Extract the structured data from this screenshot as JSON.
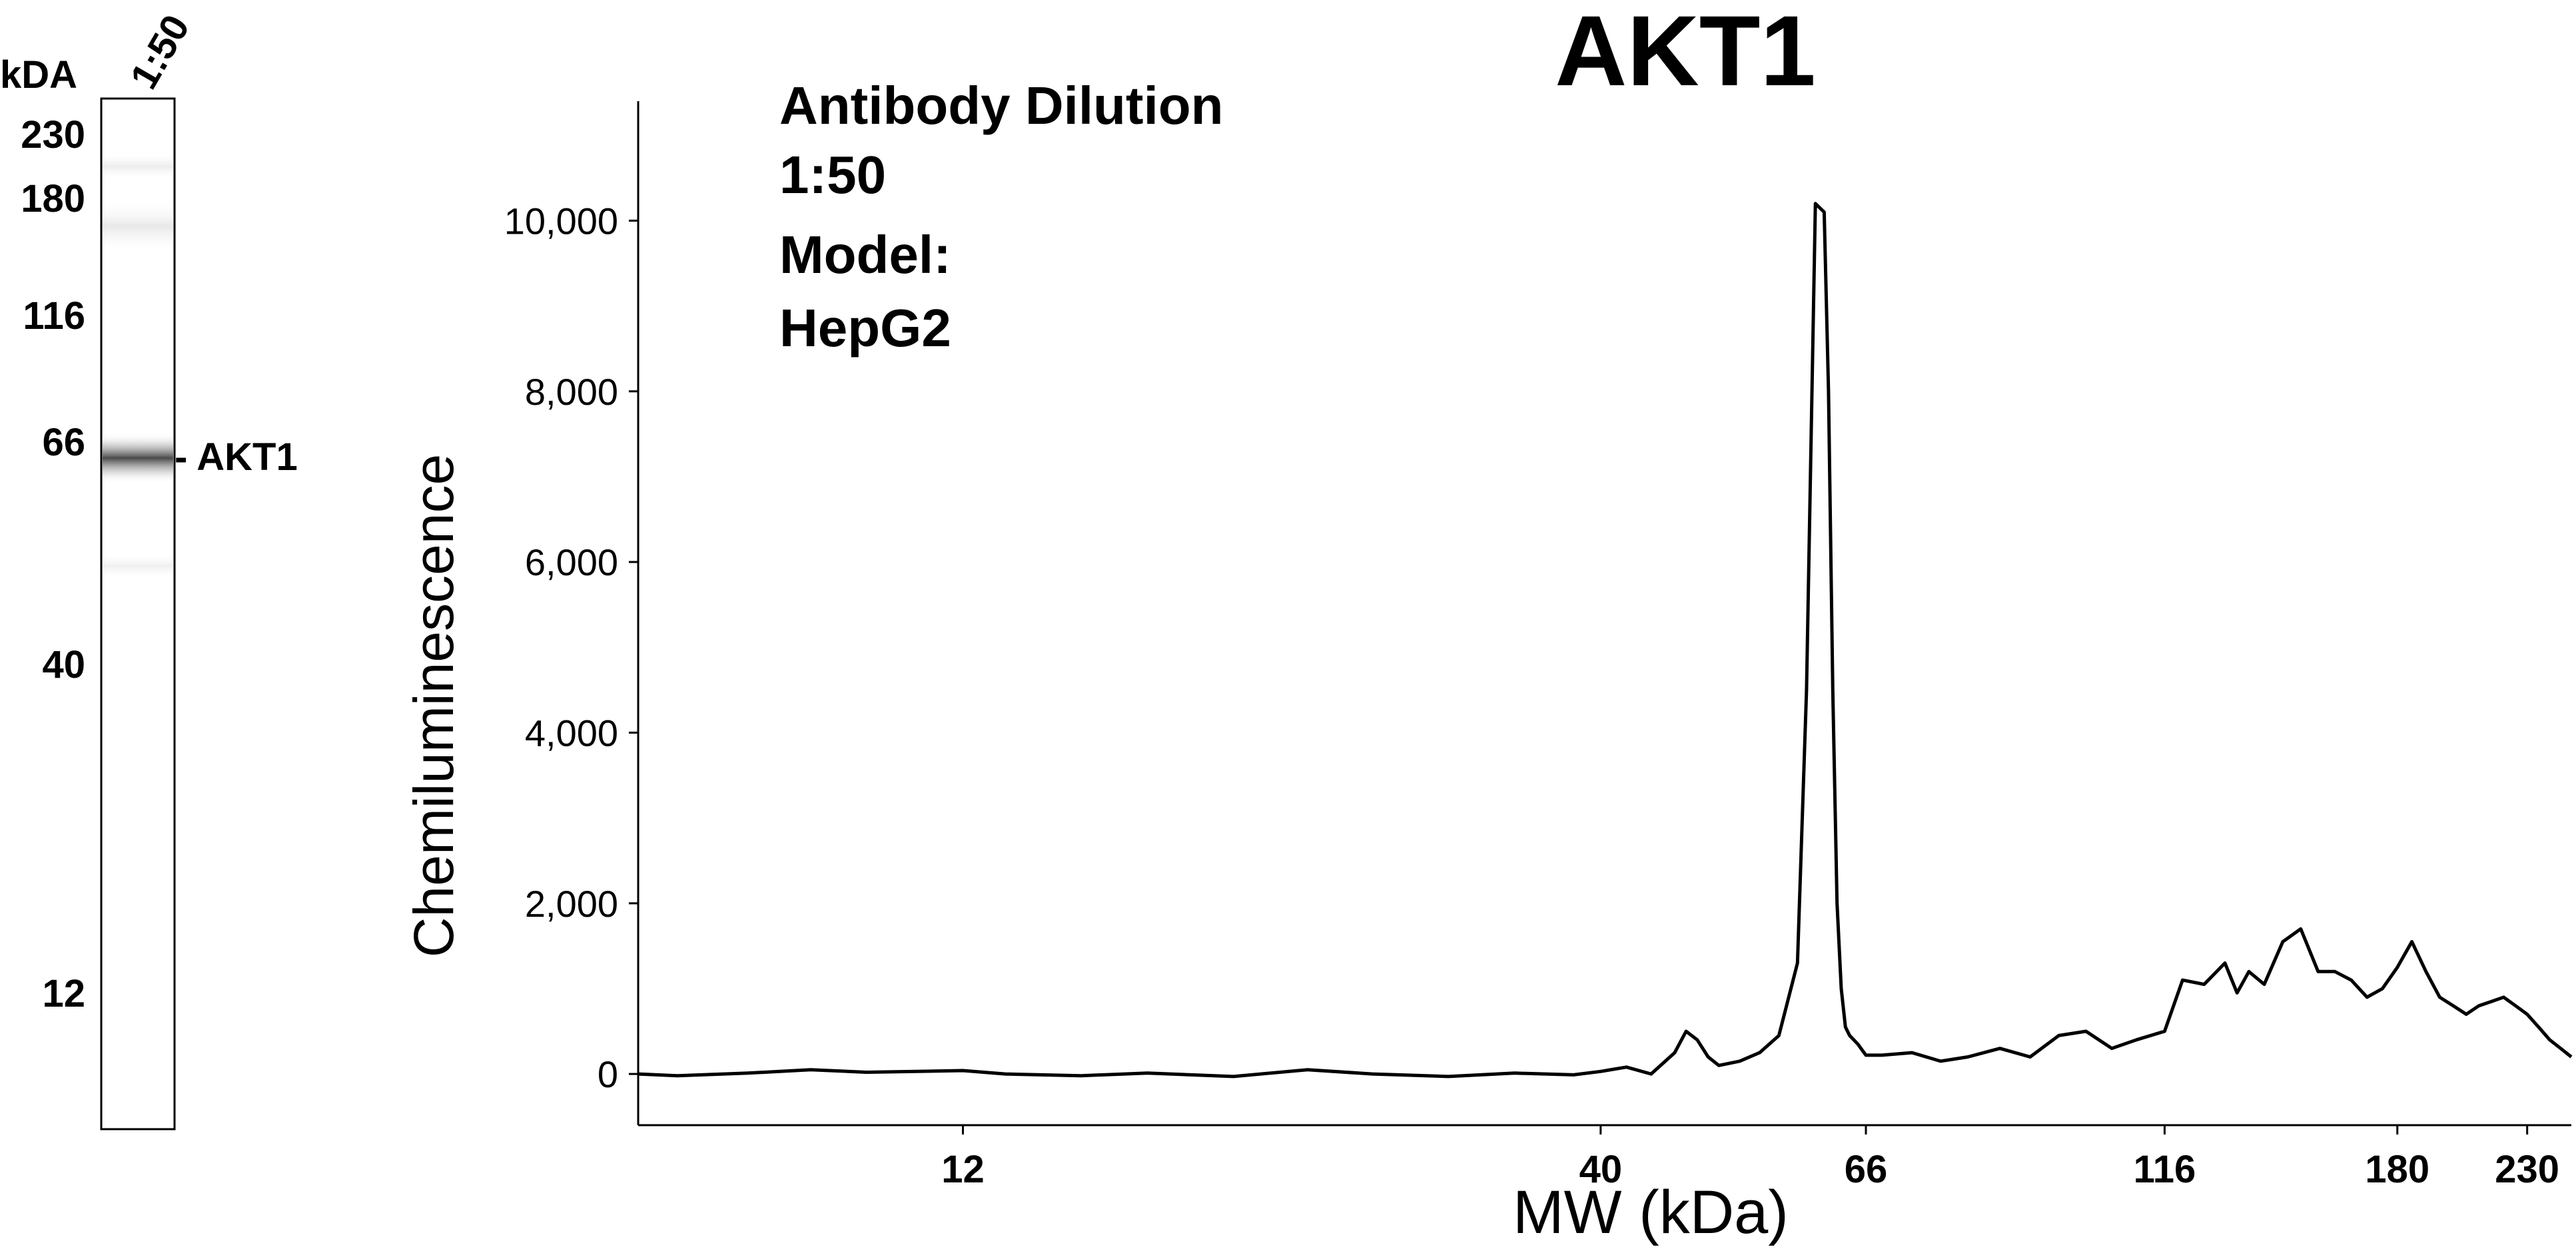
{
  "blot": {
    "kda_label": "kDA",
    "lane_label": "1:50",
    "markers": [
      "230",
      "180",
      "116",
      "66",
      "40",
      "12"
    ],
    "band_label": "- AKT1"
  },
  "chart_data": {
    "type": "line",
    "title": "AKT1",
    "annotation": {
      "lines": [
        "Antibody Dilution",
        "1:50",
        "Model:",
        "HepG2"
      ]
    },
    "xlabel": "MW (kDa)",
    "ylabel": "Chemiluminescence",
    "x_scale": "log",
    "xlim": [
      6.5,
      250
    ],
    "ylim": [
      -600,
      11400
    ],
    "x_ticks": [
      12,
      40,
      66,
      116,
      180,
      230
    ],
    "x_tick_labels": [
      "12",
      "40",
      "66",
      "116",
      "180",
      "230"
    ],
    "y_ticks": [
      0,
      2000,
      4000,
      6000,
      8000,
      10000
    ],
    "y_tick_labels": [
      "0",
      "2,000",
      "4,000",
      "6,000",
      "8,000",
      "10,000"
    ],
    "grid": false,
    "series": [
      {
        "x": [
          6.5,
          7,
          8,
          9,
          10,
          11,
          12,
          13,
          15,
          17,
          20,
          23,
          26,
          30,
          34,
          38,
          40,
          42,
          44,
          46,
          47,
          48,
          49,
          50,
          52,
          54,
          56,
          58,
          59,
          60,
          61,
          61.5,
          62,
          62.5,
          63,
          63.5,
          64,
          65,
          66,
          68,
          72,
          76,
          80,
          85,
          90,
          95,
          100,
          105,
          110,
          116,
          120,
          125,
          130,
          133,
          136,
          140,
          145,
          150,
          155,
          160,
          165,
          170,
          175,
          180,
          185,
          190,
          195,
          200,
          205,
          210,
          215,
          220,
          225,
          230,
          235,
          240,
          245,
          250
        ],
        "y": [
          0,
          -20,
          10,
          50,
          20,
          30,
          40,
          0,
          -20,
          10,
          -30,
          50,
          0,
          -30,
          10,
          -10,
          30,
          80,
          0,
          250,
          500,
          400,
          200,
          100,
          150,
          250,
          450,
          1300,
          4500,
          10200,
          10100,
          8000,
          4500,
          2000,
          1000,
          550,
          450,
          350,
          220,
          220,
          250,
          150,
          200,
          300,
          200,
          450,
          500,
          300,
          400,
          500,
          1100,
          1050,
          1300,
          950,
          1200,
          1050,
          1550,
          1700,
          1200,
          1200,
          1100,
          900,
          1000,
          1250,
          1550,
          1200,
          900,
          800,
          700,
          800,
          850,
          900,
          800,
          700,
          550,
          400,
          300,
          200
        ]
      }
    ]
  }
}
